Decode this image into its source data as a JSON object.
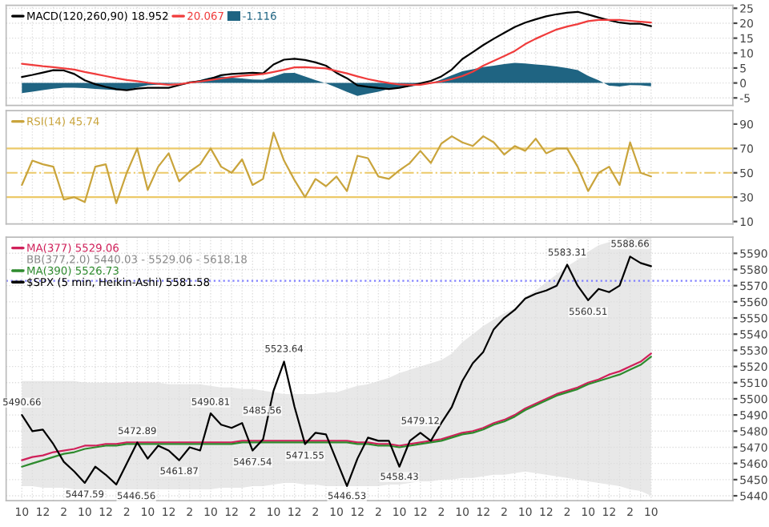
{
  "chart_data": [
    {
      "type": "line",
      "ylim": [
        -7.5,
        26
      ],
      "yticks": [
        -5,
        0,
        5,
        10,
        15,
        20,
        25
      ],
      "grid": true,
      "legend": "top left",
      "tick_labels": "y",
      "categories": [
        null,
        null,
        null,
        null,
        null,
        null,
        null,
        null,
        null,
        null,
        null,
        null,
        null,
        null,
        null,
        null,
        null,
        null,
        null,
        null,
        null,
        null,
        null,
        null,
        null,
        null,
        null,
        null,
        null,
        null,
        null,
        null,
        null,
        null,
        null,
        null,
        null,
        null,
        null,
        null,
        null,
        null,
        null,
        null,
        null,
        null,
        null,
        null,
        null,
        null,
        null,
        null,
        null,
        null,
        null,
        null,
        null,
        null,
        null,
        null,
        null
      ],
      "series": [
        {
          "name": "MACD(120,260,90) 18.952",
          "color": "#000000",
          "values": [
            2.0,
            2.7,
            3.5,
            4.3,
            4.2,
            3.0,
            0.9,
            -0.4,
            -1.3,
            -2.1,
            -2.4,
            -1.9,
            -1.6,
            -1.6,
            -1.6,
            -0.7,
            0.2,
            0.6,
            1.4,
            2.6,
            3.0,
            3.2,
            3.4,
            3.2,
            6.2,
            7.8,
            8.1,
            7.7,
            6.9,
            5.8,
            3.4,
            1.6,
            -0.8,
            -1.3,
            -1.7,
            -2.0,
            -1.6,
            -0.9,
            -0.1,
            0.7,
            2.2,
            4.5,
            8.0,
            10.3,
            12.7,
            14.8,
            16.8,
            18.7,
            20.2,
            21.3,
            22.3,
            23.0,
            23.5,
            23.8,
            22.9,
            21.9,
            21.0,
            20.2,
            19.8,
            19.8,
            19.0
          ]
        },
        {
          "name": "20.067",
          "color": "#f03c3c",
          "values": [
            6.4,
            6.0,
            5.6,
            5.3,
            4.9,
            4.5,
            3.7,
            3.0,
            2.3,
            1.6,
            1.0,
            0.6,
            0.1,
            -0.3,
            -0.6,
            -0.4,
            0.1,
            0.5,
            1.0,
            1.5,
            2.0,
            2.4,
            2.7,
            3.0,
            3.7,
            4.4,
            5.2,
            5.3,
            5.1,
            4.9,
            4.0,
            3.2,
            2.2,
            1.3,
            0.6,
            0.0,
            -0.5,
            -0.6,
            -0.6,
            0.0,
            0.5,
            1.3,
            2.3,
            3.8,
            5.8,
            7.4,
            9.0,
            10.7,
            13.0,
            14.8,
            16.4,
            17.9,
            18.9,
            19.7,
            20.7,
            21.1,
            21.1,
            21.1,
            20.8,
            20.5,
            20.2
          ]
        },
        {
          "name": "-1.116",
          "type": "area",
          "color": "#1f6482",
          "values": [
            -3.4,
            -2.9,
            -2.4,
            -1.9,
            -1.6,
            -1.6,
            -1.7,
            -2.0,
            -2.2,
            -2.4,
            -2.3,
            -1.5,
            -0.8,
            -0.6,
            -0.3,
            -0.1,
            0.2,
            1.0,
            1.9,
            2.2,
            1.8,
            1.5,
            1.2,
            1.1,
            2.2,
            3.3,
            3.4,
            2.2,
            1.0,
            -0.1,
            -1.5,
            -3.0,
            -4.3,
            -3.6,
            -2.9,
            -2.0,
            -1.5,
            -1.2,
            -0.7,
            -0.1,
            1.2,
            2.6,
            3.9,
            4.6,
            5.3,
            5.8,
            6.3,
            6.7,
            6.5,
            6.2,
            5.9,
            5.5,
            5.0,
            4.3,
            2.4,
            0.9,
            -0.9,
            -1.2,
            -0.7,
            -0.8,
            -1.1
          ]
        }
      ]
    },
    {
      "type": "line",
      "ylim": [
        8,
        101
      ],
      "yticks": [
        10,
        30,
        50,
        70,
        90
      ],
      "grid": "x",
      "legend": "top left",
      "tick_labels": "y",
      "categories": [
        null,
        null,
        null,
        null,
        null,
        null,
        null,
        null,
        null,
        null,
        null,
        null,
        null,
        null,
        null,
        null,
        null,
        null,
        null,
        null,
        null,
        null,
        null,
        null,
        null,
        null,
        null,
        null,
        null,
        null,
        null,
        null,
        null,
        null,
        null,
        null,
        null,
        null,
        null,
        null,
        null,
        null,
        null,
        null,
        null,
        null,
        null,
        null,
        null,
        null,
        null,
        null,
        null,
        null,
        null,
        null,
        null,
        null,
        null,
        null,
        null
      ],
      "ref_lines": [
        {
          "axis": "y",
          "value": 70,
          "color": "#ecc968",
          "line_style": "solid"
        },
        {
          "axis": "y",
          "value": 50,
          "color": "#ecc968",
          "line_style": "dashed"
        },
        {
          "axis": "y",
          "value": 30,
          "color": "#ecc968",
          "line_style": "solid"
        }
      ],
      "series": [
        {
          "name": "RSI(14) 45.74",
          "color": "#c9a43c",
          "values": [
            40,
            60,
            57,
            55,
            28,
            30,
            26,
            55,
            57,
            25,
            50,
            70,
            36,
            55,
            66,
            43,
            51,
            57,
            70,
            55,
            50,
            61,
            40,
            45,
            83,
            60,
            44,
            30,
            45,
            39,
            47,
            35,
            64,
            62,
            47,
            45,
            52,
            58,
            68,
            58,
            74,
            80,
            75,
            72,
            80,
            75,
            65,
            72,
            68,
            78,
            66,
            70,
            70,
            55,
            35,
            50,
            55,
            40,
            75,
            50,
            47
          ]
        }
      ]
    },
    {
      "type": "line",
      "ylim": [
        5437,
        5600
      ],
      "yticks": [
        5440,
        5450,
        5460,
        5470,
        5480,
        5490,
        5500,
        5510,
        5520,
        5530,
        5540,
        5550,
        5560,
        5570,
        5580,
        5590
      ],
      "grid": true,
      "legend": "top left",
      "categories": [
        "10",
        null,
        "12",
        null,
        "2",
        null,
        "10",
        null,
        "12",
        null,
        "2",
        null,
        "10",
        null,
        "12",
        null,
        "2",
        null,
        "10",
        null,
        "12",
        null,
        "2",
        null,
        "10",
        null,
        "12",
        null,
        "2",
        null,
        "10",
        null,
        "12",
        null,
        "2",
        null,
        "10",
        null,
        "12",
        null,
        "2",
        null,
        "10",
        null,
        "12",
        null,
        "2",
        null,
        "10",
        null,
        "12",
        null,
        "2",
        null,
        "10",
        null,
        "12",
        null,
        "2",
        null,
        "10"
      ],
      "ref_lines": [
        {
          "axis": "y",
          "value": 5573,
          "color": "#8080ff",
          "line_style": "dotted"
        }
      ],
      "annotations": [
        "BB(377,2.0) 5440.03 - 5529.06 - 5618.18",
        {
          "text": "5490.66",
          "y": 5490.66
        },
        {
          "text": "5447.59",
          "y": 5447.59
        },
        {
          "text": "5446.56",
          "y": 5446.56
        },
        {
          "text": "5472.89",
          "y": 5472.89
        },
        {
          "text": "5461.87",
          "y": 5461.87
        },
        {
          "text": "5490.81",
          "y": 5490.81
        },
        {
          "text": "5485.56",
          "y": 5485.56
        },
        {
          "text": "5467.54",
          "y": 5467.54
        },
        {
          "text": "5523.64",
          "y": 5523.64
        },
        {
          "text": "5471.55",
          "y": 5471.55
        },
        {
          "text": "5446.53",
          "y": 5446.53
        },
        {
          "text": "5458.43",
          "y": 5458.43
        },
        {
          "text": "5479.12",
          "y": 5479.12
        },
        {
          "text": "5583.31",
          "y": 5583.31
        },
        {
          "text": "5560.51",
          "y": 5560.51
        },
        {
          "text": "5588.66",
          "y": 5588.66
        }
      ],
      "series": [
        {
          "name": "MA(377) 5529.06",
          "color": "#d0205a",
          "values": [
            5462,
            5464,
            5465,
            5467,
            5468,
            5469,
            5471,
            5471,
            5472,
            5472,
            5473,
            5473,
            5473,
            5473,
            5473,
            5473,
            5473,
            5473,
            5473,
            5473,
            5473,
            5474,
            5474,
            5474,
            5474,
            5474,
            5474,
            5474,
            5474,
            5474,
            5474,
            5474,
            5473,
            5473,
            5472,
            5472,
            5471,
            5472,
            5473,
            5474,
            5475,
            5477,
            5479,
            5480,
            5482,
            5485,
            5487,
            5490,
            5494,
            5497,
            5500,
            5503,
            5505,
            5507,
            5510,
            5512,
            5515,
            5517,
            5520,
            5523,
            5528
          ],
          "lower": [
            5446,
            5446,
            5445,
            5445,
            5445,
            5444,
            5444,
            5444,
            5444,
            5444,
            5444,
            5444,
            5444,
            5444,
            5444,
            5444,
            5444,
            5444,
            5444,
            5445,
            5445,
            5445,
            5446,
            5446,
            5447,
            5448,
            5448,
            5447,
            5447,
            5446,
            5446,
            5446,
            5446,
            5446,
            5446,
            5447,
            5447,
            5448,
            5449,
            5449,
            5450,
            5450,
            5451,
            5451,
            5452,
            5453,
            5453,
            5454,
            5455,
            5454,
            5453,
            5452,
            5451,
            5450,
            5449,
            5448,
            5447,
            5446,
            5444,
            5443,
            5440
          ],
          "upper": [
            5511,
            5511,
            5511,
            5511,
            5511,
            5511,
            5510,
            5510,
            5510,
            5510,
            5510,
            5510,
            5510,
            5510,
            5509,
            5509,
            5509,
            5509,
            5508,
            5507,
            5507,
            5506,
            5506,
            5505,
            5504,
            5503,
            5503,
            5503,
            5503,
            5504,
            5504,
            5506,
            5508,
            5509,
            5511,
            5513,
            5516,
            5518,
            5520,
            5522,
            5524,
            5528,
            5535,
            5540,
            5545,
            5549,
            5553,
            5556,
            5563,
            5567,
            5572,
            5577,
            5582,
            5586,
            5591,
            5595,
            5597,
            5598,
            5600,
            5600,
            5600
          ]
        },
        {
          "name": "MA(390) 5526.73",
          "color": "#2e8b2e",
          "values": [
            5458,
            5460,
            5462,
            5464,
            5466,
            5467,
            5469,
            5470,
            5471,
            5471,
            5472,
            5472,
            5472,
            5472,
            5472,
            5472,
            5472,
            5472,
            5472,
            5472,
            5472,
            5473,
            5473,
            5473,
            5473,
            5473,
            5473,
            5473,
            5473,
            5473,
            5473,
            5473,
            5472,
            5472,
            5471,
            5471,
            5470,
            5471,
            5472,
            5473,
            5474,
            5476,
            5478,
            5479,
            5481,
            5484,
            5486,
            5489,
            5493,
            5496,
            5499,
            5502,
            5504,
            5506,
            5509,
            5511,
            5513,
            5515,
            5518,
            5521,
            5526
          ]
        },
        {
          "name": "$SPX (5 min, Heikin-Ashi) 5581.58",
          "color": "#000000",
          "values": [
            5490,
            5480,
            5481,
            5472,
            5461,
            5455,
            5448,
            5458,
            5453,
            5447,
            5460,
            5473,
            5463,
            5471,
            5468,
            5462,
            5470,
            5468,
            5491,
            5484,
            5482,
            5485,
            5468,
            5475,
            5505,
            5523,
            5495,
            5472,
            5479,
            5478,
            5462,
            5446,
            5463,
            5476,
            5474,
            5474,
            5458,
            5474,
            5479,
            5474,
            5485,
            5495,
            5511,
            5522,
            5529,
            5543,
            5550,
            5555,
            5562,
            5565,
            5567,
            5570,
            5583,
            5570,
            5561,
            5568,
            5566,
            5570,
            5588,
            5584,
            5582
          ]
        }
      ]
    }
  ]
}
